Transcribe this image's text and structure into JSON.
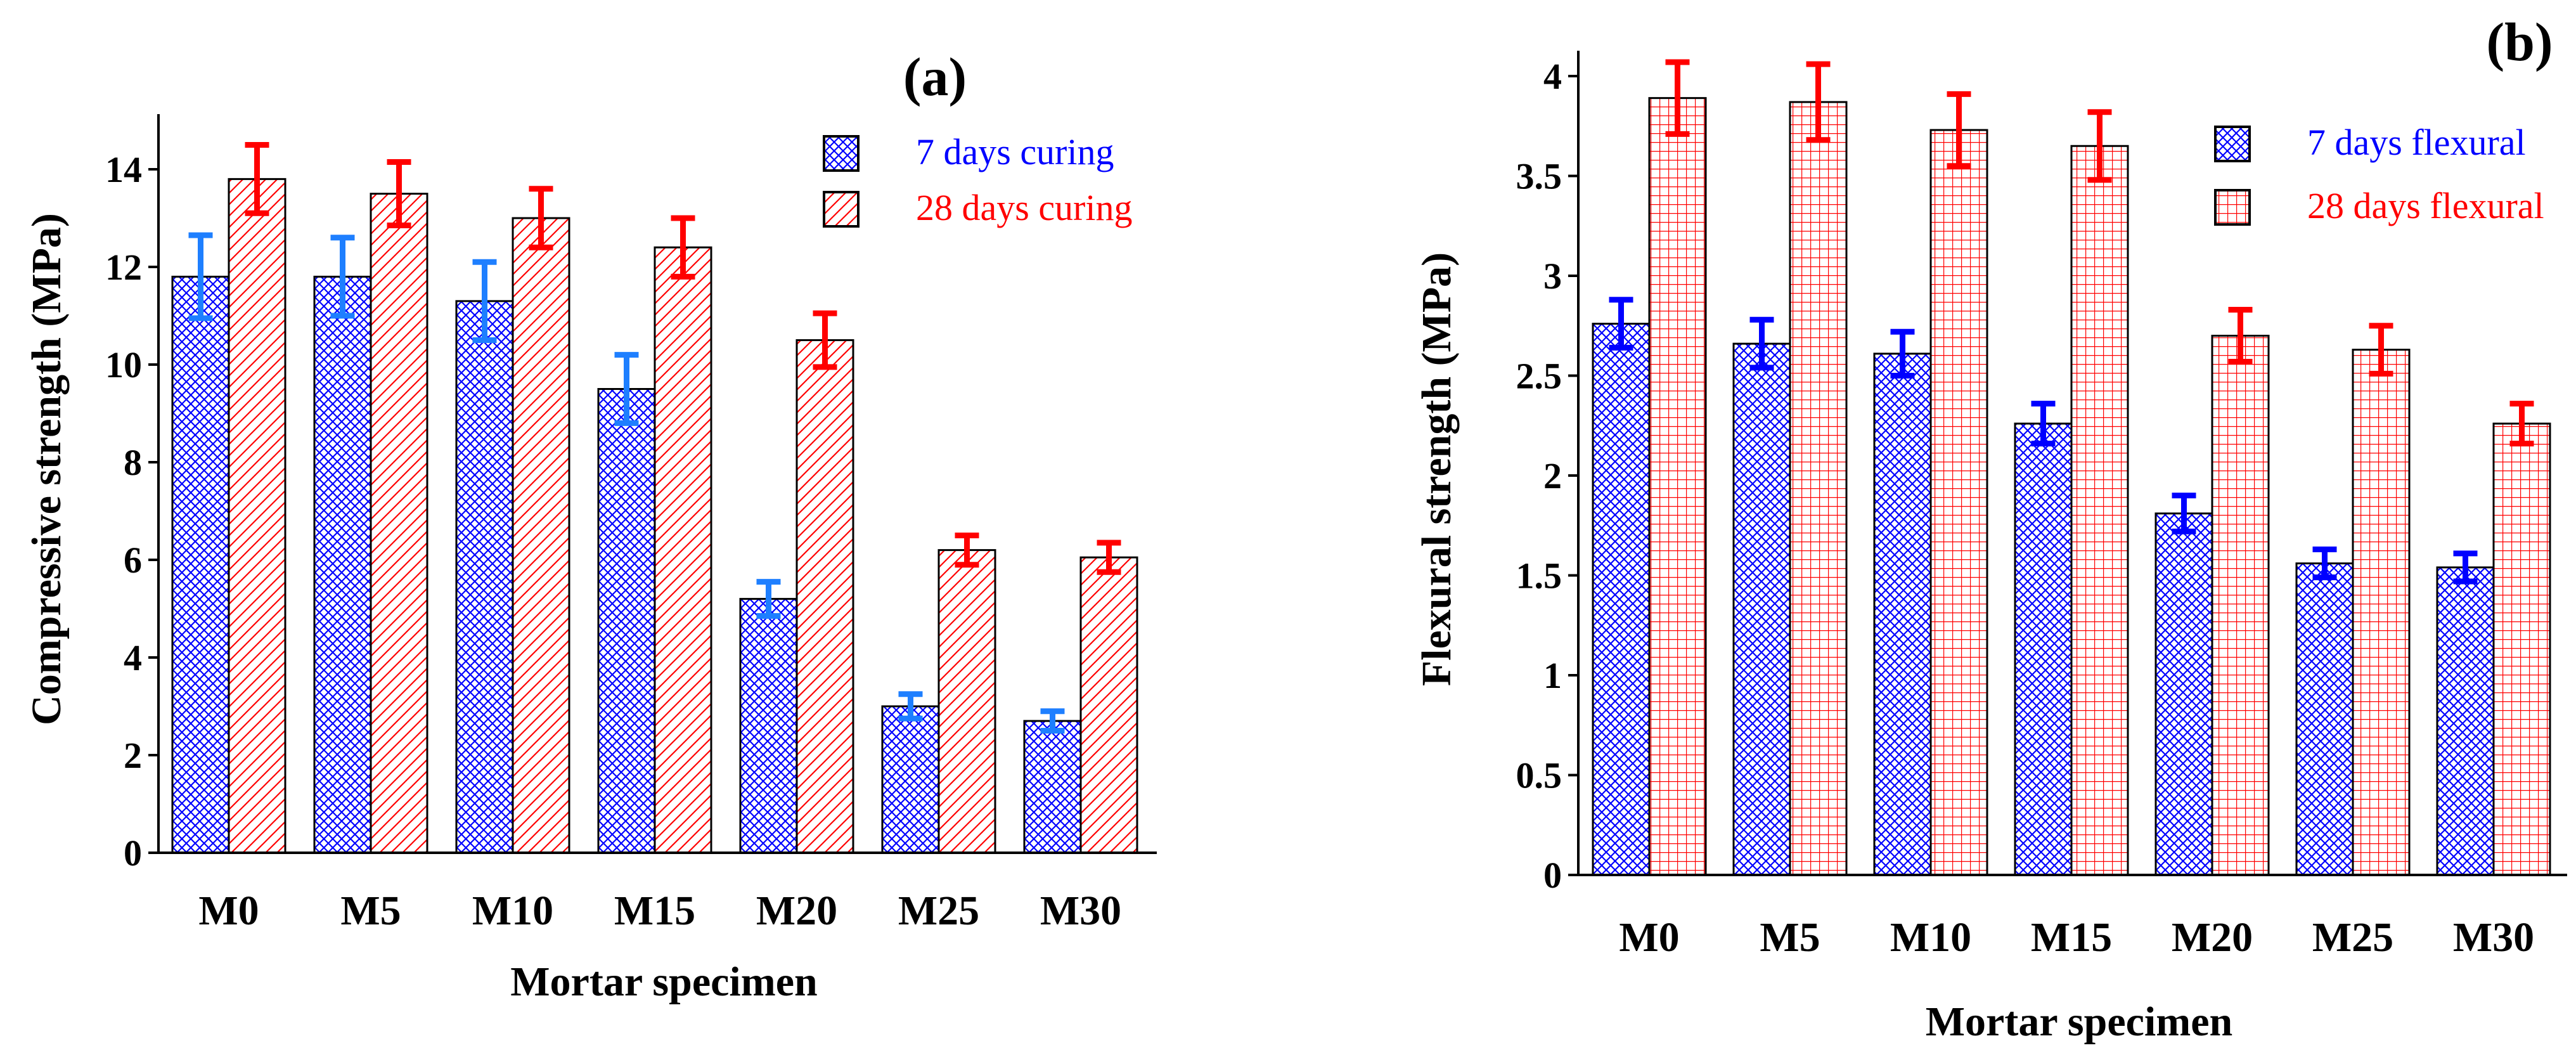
{
  "chart_data": [
    {
      "type": "bar",
      "panel_label": "(a)",
      "categories": [
        "M0",
        "M5",
        "M10",
        "M15",
        "M20",
        "M25",
        "M30"
      ],
      "xlabel": "Mortar specimen",
      "ylabel": "Compressive strength (MPa)",
      "ylim": [
        0,
        15
      ],
      "yticks": [
        0,
        2,
        4,
        6,
        8,
        10,
        12,
        14
      ],
      "ytick_labels": [
        "0",
        "2",
        "4",
        "6",
        "8",
        "10",
        "12",
        "14"
      ],
      "legend_position": "top-right",
      "series": [
        {
          "name": "7 days curing",
          "values": [
            11.8,
            11.8,
            11.3,
            9.5,
            5.2,
            3.0,
            2.7
          ],
          "errors": [
            0.85,
            0.8,
            0.8,
            0.7,
            0.35,
            0.25,
            0.2
          ],
          "color": "#0000ff",
          "label_color": "#0000ff",
          "error_color": "#1e7fff",
          "pattern": "crosshatch"
        },
        {
          "name": "28 days curing",
          "values": [
            13.8,
            13.5,
            13.0,
            12.4,
            10.5,
            6.2,
            6.05
          ],
          "errors": [
            0.7,
            0.65,
            0.6,
            0.6,
            0.55,
            0.3,
            0.3
          ],
          "color": "#ff0000",
          "label_color": "#ff0000",
          "error_color": "#ff0000",
          "pattern": "diagonal"
        }
      ]
    },
    {
      "type": "bar",
      "panel_label": "(b)",
      "categories": [
        "M0",
        "M5",
        "M10",
        "M15",
        "M20",
        "M25",
        "M30"
      ],
      "xlabel": "Mortar specimen",
      "ylabel": "Flexural strength (MPa)",
      "ylim": [
        0,
        4.1
      ],
      "yticks": [
        0,
        0.5,
        1,
        1.5,
        2,
        2.5,
        3,
        3.5,
        4
      ],
      "ytick_labels": [
        "0",
        "0.5",
        "1",
        "1.5",
        "2",
        "2.5",
        "3",
        "3.5",
        "4"
      ],
      "legend_position": "top-right",
      "series": [
        {
          "name": "7 days flexural",
          "values": [
            2.76,
            2.66,
            2.61,
            2.26,
            1.81,
            1.56,
            1.54
          ],
          "errors": [
            0.12,
            0.12,
            0.11,
            0.1,
            0.09,
            0.07,
            0.07
          ],
          "color": "#0000ff",
          "label_color": "#0000ff",
          "error_color": "#0000ff",
          "pattern": "crosshatch"
        },
        {
          "name": "28 days flexural",
          "values": [
            3.89,
            3.87,
            3.73,
            3.65,
            2.7,
            2.63,
            2.26
          ],
          "errors": [
            0.18,
            0.19,
            0.18,
            0.17,
            0.13,
            0.12,
            0.1
          ],
          "color": "#ff0000",
          "label_color": "#ff0000",
          "error_color": "#ff0000",
          "pattern": "grid"
        }
      ]
    }
  ]
}
